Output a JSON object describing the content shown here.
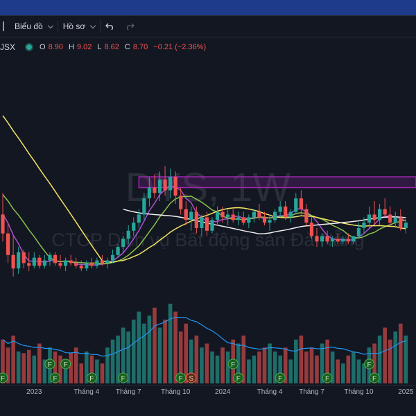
{
  "toolbar": {
    "chart_label": "Biểu đồ",
    "profile_label": "Hồ sơ"
  },
  "legend": {
    "symbol_fragment": "JSX",
    "o_label": "O",
    "o_value": "8.90",
    "h_label": "H",
    "h_value": "9.02",
    "l_label": "L",
    "l_value": "8.62",
    "c_label": "C",
    "c_value": "8.70",
    "change": "−0.21 (−2.36%)"
  },
  "watermark": {
    "symbol": "DYS, 1W",
    "company": "CTCP Dịch vụ Bất động sản Đà Nẵng"
  },
  "colors": {
    "up": "#26a69a",
    "down": "#ef5350",
    "ma_yellow": "#f5e663",
    "ma_white": "#f0f0f0",
    "ma_green": "#8bc34a",
    "ma_purple": "#b04fd6",
    "resistance_zone": "#9c27b0",
    "volume_ma": "#2196f3"
  },
  "chart_data": {
    "type": "candlestick",
    "x_axis_labels": [
      "2023",
      "Tháng 4",
      "Tháng 7",
      "Tháng 10",
      "2024",
      "Tháng 4",
      "Tháng 7",
      "Tháng 10",
      "2025"
    ],
    "price_range_visible": [
      6.5,
      15.5
    ],
    "last_bar": {
      "open": 8.9,
      "high": 9.02,
      "low": 8.62,
      "close": 8.7,
      "change": -0.21,
      "change_pct": -2.36
    },
    "resistance_zone": [
      10.6,
      11.0
    ],
    "candles": [
      {
        "o": 9.6,
        "h": 10.4,
        "l": 8.6,
        "c": 8.9
      },
      {
        "o": 8.9,
        "h": 9.3,
        "l": 7.8,
        "c": 8.1
      },
      {
        "o": 8.1,
        "h": 8.8,
        "l": 7.3,
        "c": 7.6
      },
      {
        "o": 7.6,
        "h": 8.4,
        "l": 7.4,
        "c": 8.2
      },
      {
        "o": 8.2,
        "h": 8.3,
        "l": 7.6,
        "c": 7.8
      },
      {
        "o": 7.8,
        "h": 8.2,
        "l": 7.5,
        "c": 7.7
      },
      {
        "o": 7.7,
        "h": 8.2,
        "l": 7.6,
        "c": 8.0
      },
      {
        "o": 8.0,
        "h": 8.1,
        "l": 7.6,
        "c": 7.7
      },
      {
        "o": 7.7,
        "h": 8.1,
        "l": 7.6,
        "c": 7.9
      },
      {
        "o": 7.9,
        "h": 8.2,
        "l": 7.7,
        "c": 8.1
      },
      {
        "o": 8.1,
        "h": 8.2,
        "l": 7.7,
        "c": 7.8
      },
      {
        "o": 7.8,
        "h": 8.1,
        "l": 7.6,
        "c": 7.7
      },
      {
        "o": 7.7,
        "h": 8.0,
        "l": 7.5,
        "c": 7.9
      },
      {
        "o": 7.9,
        "h": 8.1,
        "l": 7.7,
        "c": 7.8
      },
      {
        "o": 7.8,
        "h": 8.0,
        "l": 7.6,
        "c": 7.7
      },
      {
        "o": 7.7,
        "h": 7.9,
        "l": 7.5,
        "c": 7.6
      },
      {
        "o": 7.6,
        "h": 7.9,
        "l": 7.5,
        "c": 7.8
      },
      {
        "o": 7.8,
        "h": 8.0,
        "l": 7.6,
        "c": 7.7
      },
      {
        "o": 7.7,
        "h": 8.0,
        "l": 7.6,
        "c": 7.9
      },
      {
        "o": 7.9,
        "h": 8.1,
        "l": 7.7,
        "c": 7.8
      },
      {
        "o": 7.8,
        "h": 8.0,
        "l": 7.6,
        "c": 7.9
      },
      {
        "o": 7.9,
        "h": 8.3,
        "l": 7.8,
        "c": 8.1
      },
      {
        "o": 8.1,
        "h": 8.5,
        "l": 8.0,
        "c": 8.4
      },
      {
        "o": 8.4,
        "h": 8.8,
        "l": 8.2,
        "c": 8.7
      },
      {
        "o": 8.7,
        "h": 9.2,
        "l": 8.5,
        "c": 9.0
      },
      {
        "o": 9.0,
        "h": 9.5,
        "l": 8.8,
        "c": 9.3
      },
      {
        "o": 9.3,
        "h": 9.8,
        "l": 9.1,
        "c": 9.6
      },
      {
        "o": 9.6,
        "h": 10.4,
        "l": 9.4,
        "c": 10.2
      },
      {
        "o": 10.2,
        "h": 11.0,
        "l": 9.9,
        "c": 10.6
      },
      {
        "o": 10.6,
        "h": 11.1,
        "l": 10.2,
        "c": 10.4
      },
      {
        "o": 10.4,
        "h": 11.2,
        "l": 10.1,
        "c": 10.9
      },
      {
        "o": 10.9,
        "h": 11.4,
        "l": 10.3,
        "c": 10.5
      },
      {
        "o": 10.5,
        "h": 11.3,
        "l": 10.2,
        "c": 11.0
      },
      {
        "o": 11.0,
        "h": 11.2,
        "l": 10.0,
        "c": 10.3
      },
      {
        "o": 10.3,
        "h": 10.6,
        "l": 9.6,
        "c": 9.8
      },
      {
        "o": 9.8,
        "h": 10.1,
        "l": 9.2,
        "c": 9.4
      },
      {
        "o": 9.4,
        "h": 9.9,
        "l": 9.0,
        "c": 9.7
      },
      {
        "o": 9.7,
        "h": 9.9,
        "l": 8.9,
        "c": 9.1
      },
      {
        "o": 9.1,
        "h": 9.6,
        "l": 8.8,
        "c": 9.5
      },
      {
        "o": 9.5,
        "h": 9.7,
        "l": 8.8,
        "c": 9.0
      },
      {
        "o": 9.0,
        "h": 9.5,
        "l": 8.9,
        "c": 9.4
      },
      {
        "o": 9.4,
        "h": 9.9,
        "l": 9.2,
        "c": 9.7
      },
      {
        "o": 9.7,
        "h": 9.9,
        "l": 9.3,
        "c": 9.5
      },
      {
        "o": 9.5,
        "h": 9.8,
        "l": 9.2,
        "c": 9.6
      },
      {
        "o": 9.6,
        "h": 9.8,
        "l": 9.3,
        "c": 9.4
      },
      {
        "o": 9.4,
        "h": 9.7,
        "l": 9.2,
        "c": 9.5
      },
      {
        "o": 9.5,
        "h": 9.7,
        "l": 9.2,
        "c": 9.3
      },
      {
        "o": 9.3,
        "h": 9.6,
        "l": 9.1,
        "c": 9.5
      },
      {
        "o": 9.5,
        "h": 9.8,
        "l": 9.3,
        "c": 9.7
      },
      {
        "o": 9.7,
        "h": 10.0,
        "l": 9.4,
        "c": 9.5
      },
      {
        "o": 9.5,
        "h": 9.7,
        "l": 9.2,
        "c": 9.3
      },
      {
        "o": 9.3,
        "h": 9.6,
        "l": 9.0,
        "c": 9.4
      },
      {
        "o": 9.4,
        "h": 9.8,
        "l": 9.3,
        "c": 9.7
      },
      {
        "o": 9.7,
        "h": 10.1,
        "l": 9.5,
        "c": 9.9
      },
      {
        "o": 9.9,
        "h": 10.1,
        "l": 9.4,
        "c": 9.5
      },
      {
        "o": 9.5,
        "h": 9.8,
        "l": 9.3,
        "c": 9.7
      },
      {
        "o": 9.7,
        "h": 10.4,
        "l": 9.6,
        "c": 10.2
      },
      {
        "o": 10.2,
        "h": 10.5,
        "l": 9.6,
        "c": 9.8
      },
      {
        "o": 9.8,
        "h": 10.0,
        "l": 9.2,
        "c": 9.3
      },
      {
        "o": 9.3,
        "h": 9.5,
        "l": 8.7,
        "c": 8.8
      },
      {
        "o": 8.8,
        "h": 9.1,
        "l": 8.4,
        "c": 8.6
      },
      {
        "o": 8.6,
        "h": 8.9,
        "l": 8.4,
        "c": 8.8
      },
      {
        "o": 8.8,
        "h": 9.0,
        "l": 8.5,
        "c": 8.6
      },
      {
        "o": 8.6,
        "h": 8.8,
        "l": 8.4,
        "c": 8.7
      },
      {
        "o": 8.7,
        "h": 8.9,
        "l": 8.5,
        "c": 8.6
      },
      {
        "o": 8.6,
        "h": 8.8,
        "l": 8.5,
        "c": 8.7
      },
      {
        "o": 8.7,
        "h": 8.9,
        "l": 8.5,
        "c": 8.6
      },
      {
        "o": 8.6,
        "h": 8.8,
        "l": 8.5,
        "c": 8.8
      },
      {
        "o": 8.8,
        "h": 9.3,
        "l": 8.7,
        "c": 9.1
      },
      {
        "o": 9.1,
        "h": 9.5,
        "l": 8.9,
        "c": 9.3
      },
      {
        "o": 9.3,
        "h": 9.9,
        "l": 9.1,
        "c": 9.6
      },
      {
        "o": 9.6,
        "h": 10.1,
        "l": 9.2,
        "c": 9.4
      },
      {
        "o": 9.4,
        "h": 10.0,
        "l": 9.2,
        "c": 9.8
      },
      {
        "o": 9.8,
        "h": 10.2,
        "l": 9.5,
        "c": 9.6
      },
      {
        "o": 9.6,
        "h": 9.9,
        "l": 9.2,
        "c": 9.3
      },
      {
        "o": 9.3,
        "h": 9.7,
        "l": 9.1,
        "c": 9.5
      },
      {
        "o": 9.5,
        "h": 9.8,
        "l": 9.0,
        "c": 9.1
      },
      {
        "o": 9.1,
        "h": 9.4,
        "l": 8.9,
        "c": 9.3
      }
    ],
    "volume": [
      55,
      45,
      60,
      40,
      38,
      42,
      35,
      50,
      30,
      45,
      40,
      35,
      30,
      38,
      45,
      25,
      40,
      35,
      30,
      25,
      45,
      55,
      60,
      70,
      65,
      80,
      90,
      75,
      85,
      95,
      70,
      80,
      100,
      90,
      65,
      75,
      55,
      60,
      45,
      50,
      40,
      35,
      45,
      40,
      55,
      50,
      60,
      30,
      35,
      40,
      45,
      50,
      40,
      35,
      45,
      30,
      55,
      60,
      40,
      45,
      35,
      50,
      55,
      40,
      30,
      25,
      35,
      40,
      30,
      25,
      45,
      50,
      60,
      70,
      55,
      65,
      75,
      60
    ],
    "volume_ma_note": "blue moving average line over volume"
  }
}
